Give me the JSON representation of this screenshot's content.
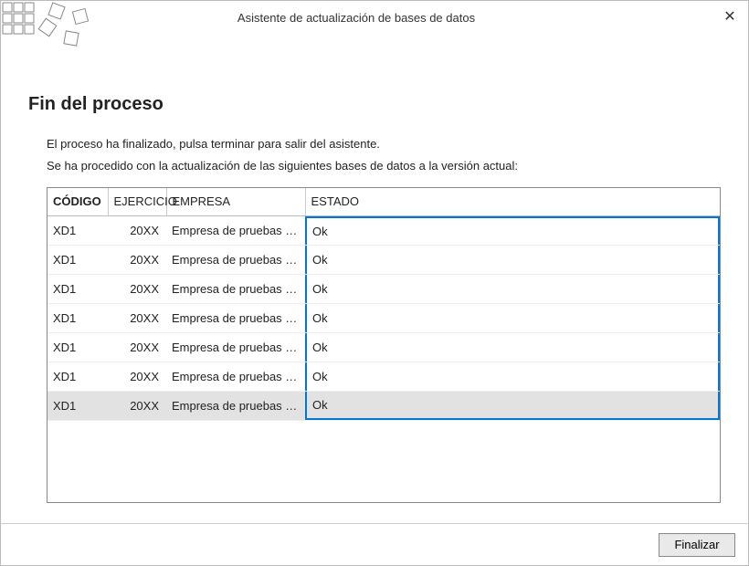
{
  "window": {
    "title": "Asistente de actualización de bases de datos"
  },
  "page": {
    "heading": "Fin del proceso",
    "desc1": "El proceso ha finalizado, pulsa terminar para salir del asistente.",
    "desc2": "Se ha procedido con la actualización de las siguientes bases de datos a la versión actual:"
  },
  "table": {
    "columns": {
      "codigo": "CÓDIGO",
      "ejercicio": "EJERCICIO",
      "empresa": "EMPRESA",
      "estado": "ESTADO"
    },
    "rows": [
      {
        "codigo": "XD1",
        "ejercicio": "20XX",
        "empresa": "Empresa de pruebas de F...",
        "estado": "Ok"
      },
      {
        "codigo": "XD1",
        "ejercicio": "20XX",
        "empresa": "Empresa de pruebas de F...",
        "estado": "Ok"
      },
      {
        "codigo": "XD1",
        "ejercicio": "20XX",
        "empresa": "Empresa de pruebas de F...",
        "estado": "Ok"
      },
      {
        "codigo": "XD1",
        "ejercicio": "20XX",
        "empresa": "Empresa de pruebas de F...",
        "estado": "Ok"
      },
      {
        "codigo": "XD1",
        "ejercicio": "20XX",
        "empresa": "Empresa de pruebas de F...",
        "estado": "Ok"
      },
      {
        "codigo": "XD1",
        "ejercicio": "20XX",
        "empresa": "Empresa de pruebas de F...",
        "estado": "Ok"
      },
      {
        "codigo": "XD1",
        "ejercicio": "20XX",
        "empresa": "Empresa de pruebas de F...",
        "estado": "Ok"
      }
    ],
    "selected_index": 6
  },
  "footer": {
    "finish_label": "Finalizar"
  },
  "style": {
    "selection_border_color": "#0078d4",
    "selected_row_bg": "#e2e2e2",
    "border_color": "#888888"
  }
}
